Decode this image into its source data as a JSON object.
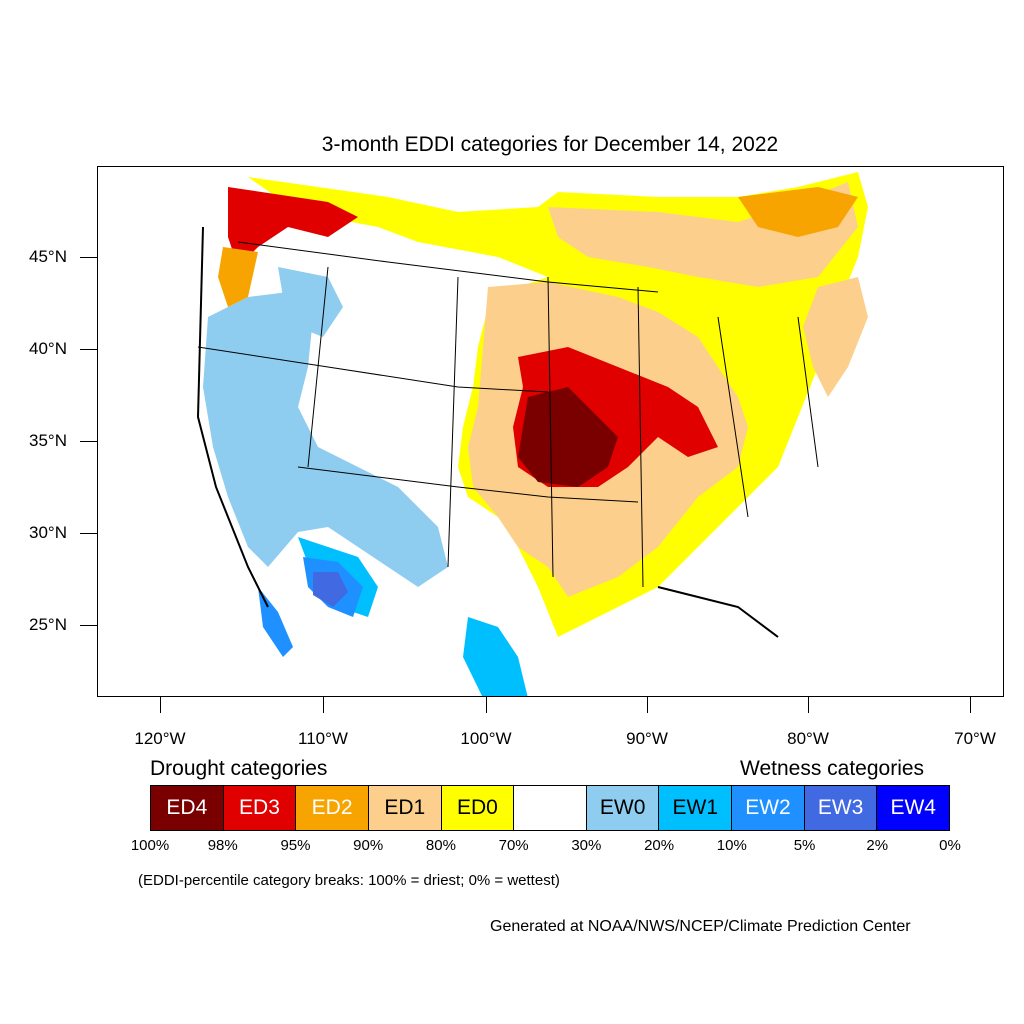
{
  "map": {
    "title": "3-month EDDI categories for December 14, 2022",
    "lat_labels": [
      "45°N",
      "40°N",
      "35°N",
      "30°N",
      "25°N"
    ],
    "lon_labels": [
      "120°W",
      "110°W",
      "100°W",
      "90°W",
      "80°W",
      "70°W"
    ],
    "colors": {
      "ED4": "#7a0000",
      "ED3": "#e00000",
      "ED2": "#f7a300",
      "ED1": "#fcd08c",
      "ED0": "#ffff00",
      "neutral": "#ffffff",
      "EW0": "#8ecdf0",
      "EW1": "#00bfff",
      "EW2": "#1e90ff",
      "EW3": "#4169e1",
      "EW4": "#0000ff"
    }
  },
  "legend": {
    "drought_heading": "Drought categories",
    "wetness_heading": "Wetness categories",
    "categories": [
      {
        "label": "ED4",
        "color": "#7a0000",
        "text_color": "#ffffff"
      },
      {
        "label": "ED3",
        "color": "#e00000",
        "text_color": "#ffffff"
      },
      {
        "label": "ED2",
        "color": "#f7a300",
        "text_color": "#ffffff"
      },
      {
        "label": "ED1",
        "color": "#fcd08c",
        "text_color": "#000000"
      },
      {
        "label": "ED0",
        "color": "#ffff00",
        "text_color": "#000000"
      },
      {
        "label": "",
        "color": "#ffffff",
        "text_color": "#000000"
      },
      {
        "label": "EW0",
        "color": "#8ecdf0",
        "text_color": "#000000"
      },
      {
        "label": "EW1",
        "color": "#00bfff",
        "text_color": "#000000"
      },
      {
        "label": "EW2",
        "color": "#1e90ff",
        "text_color": "#ffffff"
      },
      {
        "label": "EW3",
        "color": "#4169e1",
        "text_color": "#ffffff"
      },
      {
        "label": "EW4",
        "color": "#0000ff",
        "text_color": "#ffffff"
      }
    ],
    "percentiles": [
      "100%",
      "98%",
      "95%",
      "90%",
      "80%",
      "70%",
      "30%",
      "20%",
      "10%",
      "5%",
      "2%",
      "0%"
    ]
  },
  "note": "(EDDI-percentile category breaks: 100% = driest; 0% = wettest)",
  "credit": "Generated at NOAA/NWS/NCEP/Climate Prediction Center"
}
